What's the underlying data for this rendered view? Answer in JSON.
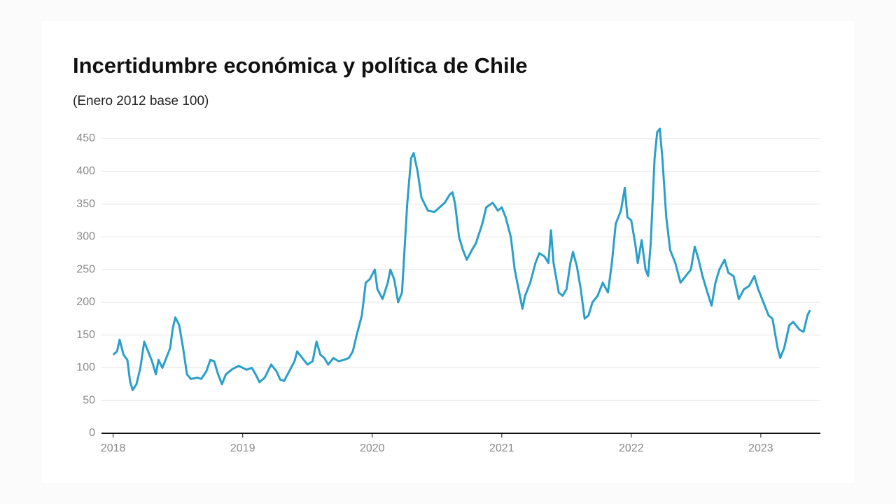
{
  "chart_data": {
    "type": "line",
    "title": "Incertidumbre económica y política de Chile",
    "subtitle": "(Enero 2012 base 100)",
    "xlim": [
      2017.91,
      2023.46
    ],
    "xticks": [
      2018,
      2019,
      2020,
      2021,
      2022,
      2023
    ],
    "ylim": [
      0,
      450
    ],
    "yticks": [
      0,
      50,
      100,
      150,
      200,
      250,
      300,
      350,
      400,
      450
    ],
    "grid": true,
    "x": [
      2018.0,
      2018.03,
      2018.05,
      2018.08,
      2018.11,
      2018.13,
      2018.15,
      2018.18,
      2018.21,
      2018.24,
      2018.27,
      2018.3,
      2018.33,
      2018.35,
      2018.38,
      2018.41,
      2018.44,
      2018.46,
      2018.48,
      2018.51,
      2018.54,
      2018.57,
      2018.6,
      2018.65,
      2018.68,
      2018.72,
      2018.75,
      2018.78,
      2018.81,
      2018.84,
      2018.87,
      2018.92,
      2018.97,
      2019.03,
      2019.07,
      2019.1,
      2019.13,
      2019.17,
      2019.22,
      2019.26,
      2019.29,
      2019.32,
      2019.36,
      2019.4,
      2019.42,
      2019.46,
      2019.5,
      2019.54,
      2019.57,
      2019.6,
      2019.63,
      2019.66,
      2019.7,
      2019.74,
      2019.78,
      2019.82,
      2019.85,
      2019.88,
      2019.92,
      2019.95,
      2019.98,
      2020.02,
      2020.04,
      2020.08,
      2020.12,
      2020.14,
      2020.17,
      2020.2,
      2020.23,
      2020.27,
      2020.3,
      2020.32,
      2020.35,
      2020.38,
      2020.43,
      2020.48,
      2020.52,
      2020.56,
      2020.6,
      2020.62,
      2020.64,
      2020.67,
      2020.7,
      2020.73,
      2020.77,
      2020.8,
      2020.85,
      2020.88,
      2020.93,
      2020.97,
      2021.0,
      2021.03,
      2021.07,
      2021.1,
      2021.13,
      2021.16,
      2021.18,
      2021.22,
      2021.26,
      2021.29,
      2021.33,
      2021.36,
      2021.38,
      2021.4,
      2021.44,
      2021.47,
      2021.5,
      2021.53,
      2021.55,
      2021.58,
      2021.61,
      2021.64,
      2021.67,
      2021.7,
      2021.74,
      2021.78,
      2021.82,
      2021.85,
      2021.88,
      2021.92,
      2021.95,
      2021.97,
      2022.0,
      2022.03,
      2022.05,
      2022.08,
      2022.11,
      2022.13,
      2022.15,
      2022.18,
      2022.2,
      2022.22,
      2022.24,
      2022.27,
      2022.3,
      2022.34,
      2022.38,
      2022.42,
      2022.46,
      2022.49,
      2022.52,
      2022.55,
      2022.58,
      2022.62,
      2022.65,
      2022.68,
      2022.72,
      2022.75,
      2022.79,
      2022.83,
      2022.87,
      2022.91,
      2022.95,
      2022.98,
      2023.02,
      2023.06,
      2023.09,
      2023.13,
      2023.15,
      2023.18,
      2023.22,
      2023.25,
      2023.3,
      2023.33,
      2023.36,
      2023.38
    ],
    "series": [
      {
        "color": "#2a9fca",
        "values": [
          120,
          125,
          143,
          120,
          112,
          80,
          66,
          75,
          100,
          140,
          125,
          110,
          90,
          112,
          100,
          115,
          130,
          160,
          177,
          165,
          130,
          90,
          83,
          85,
          83,
          95,
          112,
          110,
          90,
          75,
          90,
          98,
          103,
          97,
          100,
          90,
          78,
          85,
          105,
          95,
          82,
          80,
          95,
          110,
          125,
          115,
          105,
          110,
          140,
          120,
          115,
          105,
          115,
          110,
          112,
          115,
          125,
          150,
          180,
          230,
          235,
          250,
          220,
          205,
          230,
          250,
          235,
          200,
          215,
          350,
          420,
          428,
          400,
          360,
          340,
          338,
          345,
          352,
          365,
          368,
          350,
          300,
          280,
          265,
          280,
          290,
          320,
          345,
          352,
          340,
          345,
          330,
          300,
          250,
          220,
          190,
          210,
          230,
          260,
          275,
          270,
          260,
          310,
          260,
          215,
          210,
          220,
          260,
          277,
          255,
          220,
          175,
          180,
          200,
          210,
          230,
          215,
          260,
          320,
          340,
          375,
          330,
          325,
          290,
          260,
          295,
          250,
          240,
          290,
          420,
          460,
          465,
          420,
          330,
          280,
          260,
          230,
          240,
          250,
          285,
          265,
          240,
          220,
          195,
          230,
          250,
          265,
          245,
          240,
          205,
          220,
          225,
          240,
          220,
          200,
          180,
          175,
          130,
          115,
          130,
          165,
          170,
          158,
          155,
          180,
          188
        ]
      }
    ]
  }
}
